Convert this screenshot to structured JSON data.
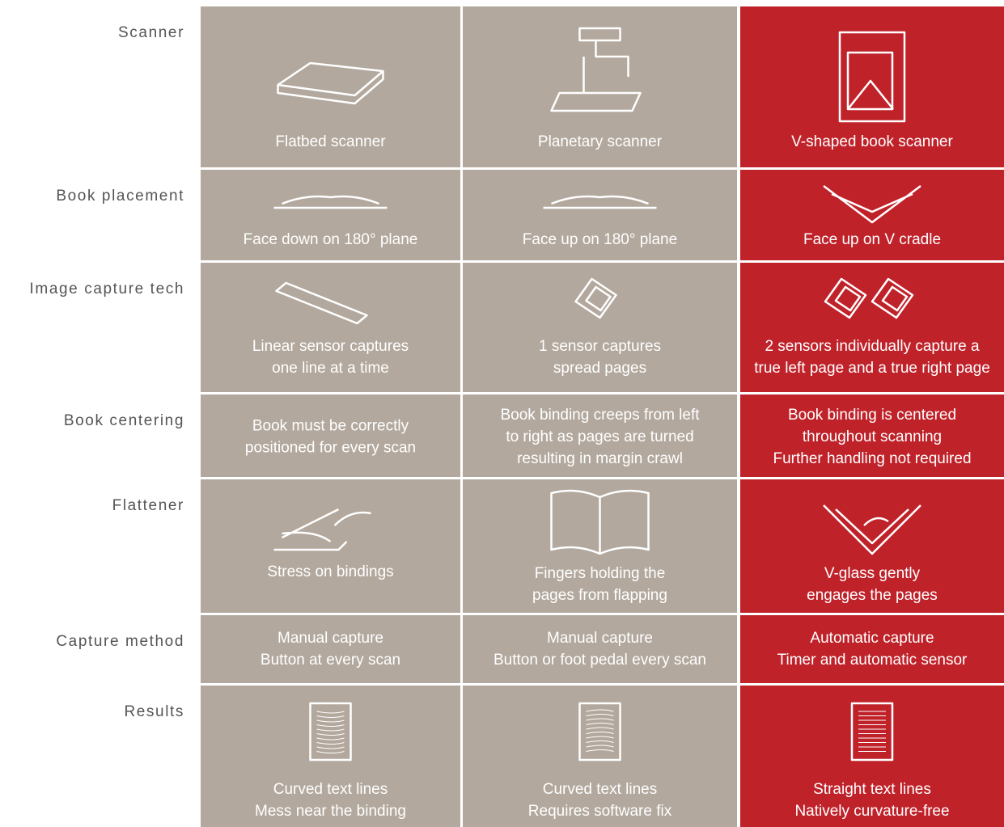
{
  "rows": [
    {
      "label": "Scanner",
      "cells": [
        [
          "Flatbed scanner"
        ],
        [
          "Planetary scanner"
        ],
        [
          "V-shaped book scanner"
        ]
      ]
    },
    {
      "label": "Book placement",
      "cells": [
        [
          "Face down on 180° plane"
        ],
        [
          "Face up on 180° plane"
        ],
        [
          "Face up on V cradle"
        ]
      ]
    },
    {
      "label": "Image capture tech",
      "cells": [
        [
          "Linear sensor captures",
          "one line at a time"
        ],
        [
          "1 sensor captures",
          "spread pages"
        ],
        [
          "2 sensors individually capture a",
          "true left page and a true right page"
        ]
      ]
    },
    {
      "label": "Book centering",
      "cells": [
        [
          "Book must be correctly",
          "positioned for every scan"
        ],
        [
          "Book binding creeps from left",
          "to right as pages are turned",
          "resulting in margin crawl"
        ],
        [
          "Book binding is centered",
          "throughout scanning",
          "Further handling not required"
        ]
      ]
    },
    {
      "label": "Flattener",
      "cells": [
        [
          "Stress on  bindings"
        ],
        [
          "Fingers holding the",
          "pages from flapping"
        ],
        [
          "V-glass gently",
          "engages the pages"
        ]
      ]
    },
    {
      "label": "Capture method",
      "cells": [
        [
          "Manual capture",
          "Button at every scan"
        ],
        [
          "Manual capture",
          "Button or foot pedal every scan"
        ],
        [
          "Automatic capture",
          "Timer and automatic sensor"
        ]
      ]
    },
    {
      "label": "Results",
      "cells": [
        [
          "Curved text lines",
          "Mess near the binding"
        ],
        [
          "Curved text lines",
          "Requires software fix"
        ],
        [
          "Straight text lines",
          "Natively curvature-free"
        ]
      ]
    }
  ]
}
